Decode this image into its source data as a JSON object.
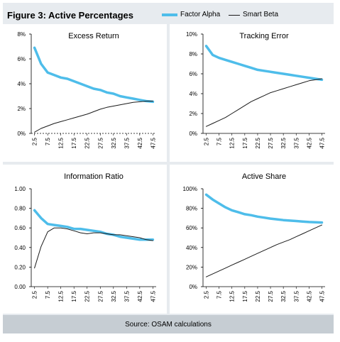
{
  "figure": {
    "title": "Figure 3: Active Percentages",
    "source": "Source: OSAM calculations"
  },
  "legend": {
    "items": [
      {
        "label": "Factor Alpha",
        "color": "#4ebdea"
      },
      {
        "label": "Smart Beta",
        "color": "#1a1a1a"
      }
    ]
  },
  "chart_data": [
    {
      "type": "line",
      "title": "Excess Return",
      "x": [
        "2.5",
        "5",
        "7.5",
        "10",
        "12.5",
        "15",
        "17.5",
        "20",
        "22.5",
        "25",
        "27.5",
        "30",
        "32.5",
        "35",
        "37.5",
        "40",
        "42.5",
        "45",
        "47.5"
      ],
      "ylim": [
        0,
        8
      ],
      "yticks": [
        "0%",
        "2%",
        "4%",
        "6%",
        "8%"
      ],
      "ytick_values": [
        0,
        2,
        4,
        6,
        8
      ],
      "zero_line_dashed": true,
      "series": [
        {
          "name": "Factor Alpha",
          "color": "#4ebdea",
          "values": [
            6.9,
            5.6,
            4.9,
            4.7,
            4.5,
            4.4,
            4.2,
            4.0,
            3.8,
            3.6,
            3.5,
            3.3,
            3.2,
            3.0,
            2.9,
            2.8,
            2.7,
            2.6,
            2.55
          ]
        },
        {
          "name": "Smart Beta",
          "color": "#1a1a1a",
          "values": [
            0.1,
            0.4,
            0.6,
            0.8,
            0.95,
            1.1,
            1.25,
            1.4,
            1.55,
            1.75,
            1.95,
            2.1,
            2.2,
            2.3,
            2.4,
            2.5,
            2.55,
            2.6,
            2.6
          ]
        }
      ]
    },
    {
      "type": "line",
      "title": "Tracking Error",
      "x": [
        "2.5",
        "5",
        "7.5",
        "10",
        "12.5",
        "15",
        "17.5",
        "20",
        "22.5",
        "25",
        "27.5",
        "30",
        "32.5",
        "35",
        "37.5",
        "40",
        "42.5",
        "45",
        "47.5"
      ],
      "ylim": [
        0,
        10
      ],
      "yticks": [
        "0%",
        "2%",
        "4%",
        "6%",
        "8%",
        "10%"
      ],
      "ytick_values": [
        0,
        2,
        4,
        6,
        8,
        10
      ],
      "zero_line_dashed": false,
      "series": [
        {
          "name": "Factor Alpha",
          "color": "#4ebdea",
          "values": [
            8.8,
            7.9,
            7.6,
            7.4,
            7.2,
            7.0,
            6.8,
            6.6,
            6.4,
            6.3,
            6.2,
            6.1,
            6.0,
            5.9,
            5.8,
            5.7,
            5.6,
            5.5,
            5.4
          ]
        },
        {
          "name": "Smart Beta",
          "color": "#1a1a1a",
          "values": [
            0.7,
            1.0,
            1.3,
            1.6,
            2.0,
            2.4,
            2.8,
            3.2,
            3.5,
            3.8,
            4.1,
            4.3,
            4.5,
            4.7,
            4.9,
            5.1,
            5.3,
            5.4,
            5.5
          ]
        }
      ]
    },
    {
      "type": "line",
      "title": "Information Ratio",
      "x": [
        "2.5",
        "5",
        "7.5",
        "10",
        "12.5",
        "15",
        "17.5",
        "20",
        "22.5",
        "25",
        "27.5",
        "30",
        "32.5",
        "35",
        "37.5",
        "40",
        "42.5",
        "45",
        "47.5"
      ],
      "ylim": [
        0,
        1
      ],
      "yticks": [
        "0.00",
        "0.20",
        "0.40",
        "0.60",
        "0.80",
        "1.00"
      ],
      "ytick_values": [
        0,
        0.2,
        0.4,
        0.6,
        0.8,
        1.0
      ],
      "zero_line_dashed": false,
      "series": [
        {
          "name": "Factor Alpha",
          "color": "#4ebdea",
          "values": [
            0.78,
            0.7,
            0.64,
            0.63,
            0.62,
            0.61,
            0.59,
            0.59,
            0.58,
            0.57,
            0.56,
            0.54,
            0.53,
            0.51,
            0.5,
            0.49,
            0.48,
            0.48,
            0.48
          ]
        },
        {
          "name": "Smart Beta",
          "color": "#1a1a1a",
          "values": [
            0.19,
            0.41,
            0.56,
            0.6,
            0.6,
            0.59,
            0.57,
            0.55,
            0.54,
            0.55,
            0.55,
            0.54,
            0.53,
            0.53,
            0.52,
            0.51,
            0.5,
            0.48,
            0.47
          ]
        }
      ]
    },
    {
      "type": "line",
      "title": "Active Share",
      "x": [
        "2.5",
        "5",
        "7.5",
        "10",
        "12.5",
        "15",
        "17.5",
        "20",
        "22.5",
        "25",
        "27.5",
        "30",
        "32.5",
        "35",
        "37.5",
        "40",
        "42.5",
        "45",
        "47.5"
      ],
      "ylim": [
        0,
        100
      ],
      "yticks": [
        "0%",
        "20%",
        "40%",
        "60%",
        "80%",
        "100%"
      ],
      "ytick_values": [
        0,
        20,
        40,
        60,
        80,
        100
      ],
      "zero_line_dashed": false,
      "series": [
        {
          "name": "Factor Alpha",
          "color": "#4ebdea",
          "values": [
            94,
            89,
            85,
            81,
            78,
            76,
            74,
            73,
            71.5,
            70.5,
            69.5,
            68.8,
            68,
            67.5,
            67,
            66.5,
            66,
            65.8,
            65.5
          ]
        },
        {
          "name": "Smart Beta",
          "color": "#1a1a1a",
          "values": [
            10,
            13,
            16,
            19,
            22,
            25,
            28,
            31,
            34,
            37,
            40,
            43,
            45.5,
            48,
            51,
            54,
            57,
            60,
            63
          ]
        }
      ]
    }
  ]
}
